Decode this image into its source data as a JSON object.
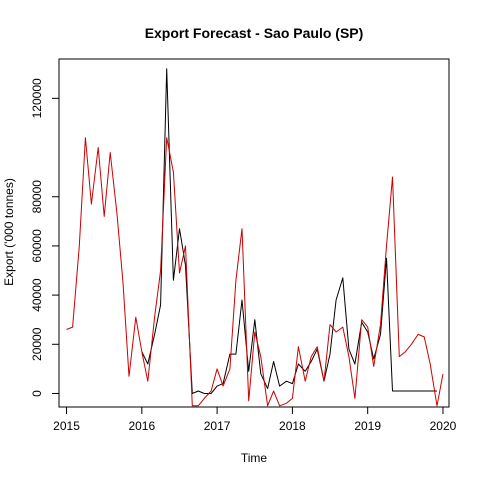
{
  "chart_data": {
    "type": "line",
    "title": "Export Forecast - Sao Paulo (SP)",
    "xlabel": "Time",
    "ylabel": "Export ('000 tonnes)",
    "xlim": [
      2014.9,
      2020.08
    ],
    "ylim": [
      -5500,
      136000
    ],
    "x_ticks": [
      2015,
      2016,
      2017,
      2018,
      2019,
      2020
    ],
    "y_ticks": [
      0,
      20000,
      40000,
      60000,
      80000,
      120000
    ],
    "grid": false,
    "legend": "none",
    "series": [
      {
        "color": "#000000",
        "points": [
          [
            2016.0,
            17000
          ],
          [
            2016.08,
            12000
          ],
          [
            2016.17,
            24000
          ],
          [
            2016.25,
            36000
          ],
          [
            2016.33,
            132000
          ],
          [
            2016.42,
            46000
          ],
          [
            2016.5,
            67000
          ],
          [
            2016.58,
            52000
          ],
          [
            2016.67,
            0
          ],
          [
            2016.75,
            1000
          ],
          [
            2016.83,
            0
          ],
          [
            2016.92,
            0
          ],
          [
            2017.0,
            3000
          ],
          [
            2017.08,
            4000
          ],
          [
            2017.17,
            16000
          ],
          [
            2017.25,
            16000
          ],
          [
            2017.33,
            38000
          ],
          [
            2017.42,
            9000
          ],
          [
            2017.5,
            30000
          ],
          [
            2017.58,
            8000
          ],
          [
            2017.67,
            2000
          ],
          [
            2017.75,
            13000
          ],
          [
            2017.83,
            3000
          ],
          [
            2017.92,
            5000
          ],
          [
            2018.0,
            4000
          ],
          [
            2018.08,
            12000
          ],
          [
            2018.17,
            9000
          ],
          [
            2018.25,
            13000
          ],
          [
            2018.33,
            18000
          ],
          [
            2018.42,
            5000
          ],
          [
            2018.5,
            16000
          ],
          [
            2018.58,
            38000
          ],
          [
            2018.67,
            47000
          ],
          [
            2018.75,
            18000
          ],
          [
            2018.83,
            12000
          ],
          [
            2018.92,
            29000
          ],
          [
            2019.0,
            25000
          ],
          [
            2019.08,
            14000
          ],
          [
            2019.17,
            24000
          ],
          [
            2019.25,
            55000
          ],
          [
            2019.33,
            1000
          ],
          [
            2019.42,
            1000
          ],
          [
            2019.5,
            1000
          ],
          [
            2019.58,
            1000
          ],
          [
            2019.67,
            1000
          ],
          [
            2019.75,
            1000
          ],
          [
            2019.83,
            1000
          ],
          [
            2019.92,
            1000
          ]
        ]
      },
      {
        "color": "#cc0000",
        "points": [
          [
            2015.0,
            26000
          ],
          [
            2015.08,
            27000
          ],
          [
            2015.17,
            60000
          ],
          [
            2015.25,
            104000
          ],
          [
            2015.33,
            77000
          ],
          [
            2015.42,
            100000
          ],
          [
            2015.5,
            72000
          ],
          [
            2015.58,
            98000
          ],
          [
            2015.67,
            73000
          ],
          [
            2015.75,
            45000
          ],
          [
            2015.83,
            7000
          ],
          [
            2015.92,
            31000
          ],
          [
            2016.0,
            17000
          ],
          [
            2016.08,
            5000
          ],
          [
            2016.17,
            31000
          ],
          [
            2016.25,
            50000
          ],
          [
            2016.33,
            104000
          ],
          [
            2016.42,
            90000
          ],
          [
            2016.5,
            49000
          ],
          [
            2016.58,
            60000
          ],
          [
            2016.67,
            -5000
          ],
          [
            2016.75,
            -5000
          ],
          [
            2016.83,
            -2000
          ],
          [
            2016.92,
            1000
          ],
          [
            2017.0,
            10000
          ],
          [
            2017.08,
            3000
          ],
          [
            2017.17,
            10000
          ],
          [
            2017.25,
            46000
          ],
          [
            2017.33,
            67000
          ],
          [
            2017.42,
            -3000
          ],
          [
            2017.5,
            25000
          ],
          [
            2017.58,
            15000
          ],
          [
            2017.67,
            -5000
          ],
          [
            2017.75,
            1000
          ],
          [
            2017.83,
            -5000
          ],
          [
            2017.92,
            -4000
          ],
          [
            2018.0,
            -2000
          ],
          [
            2018.08,
            19000
          ],
          [
            2018.17,
            5000
          ],
          [
            2018.25,
            15000
          ],
          [
            2018.33,
            19000
          ],
          [
            2018.42,
            5000
          ],
          [
            2018.5,
            28000
          ],
          [
            2018.58,
            25000
          ],
          [
            2018.67,
            27000
          ],
          [
            2018.75,
            15000
          ],
          [
            2018.83,
            -2000
          ],
          [
            2018.92,
            30000
          ],
          [
            2019.0,
            27000
          ],
          [
            2019.08,
            11000
          ],
          [
            2019.17,
            28000
          ],
          [
            2019.25,
            60000
          ],
          [
            2019.33,
            88000
          ],
          [
            2019.42,
            15000
          ],
          [
            2019.5,
            17000
          ],
          [
            2019.58,
            20000
          ],
          [
            2019.67,
            24000
          ],
          [
            2019.75,
            23000
          ],
          [
            2019.83,
            12000
          ],
          [
            2019.92,
            -5000
          ],
          [
            2020.0,
            8000
          ]
        ]
      }
    ]
  }
}
